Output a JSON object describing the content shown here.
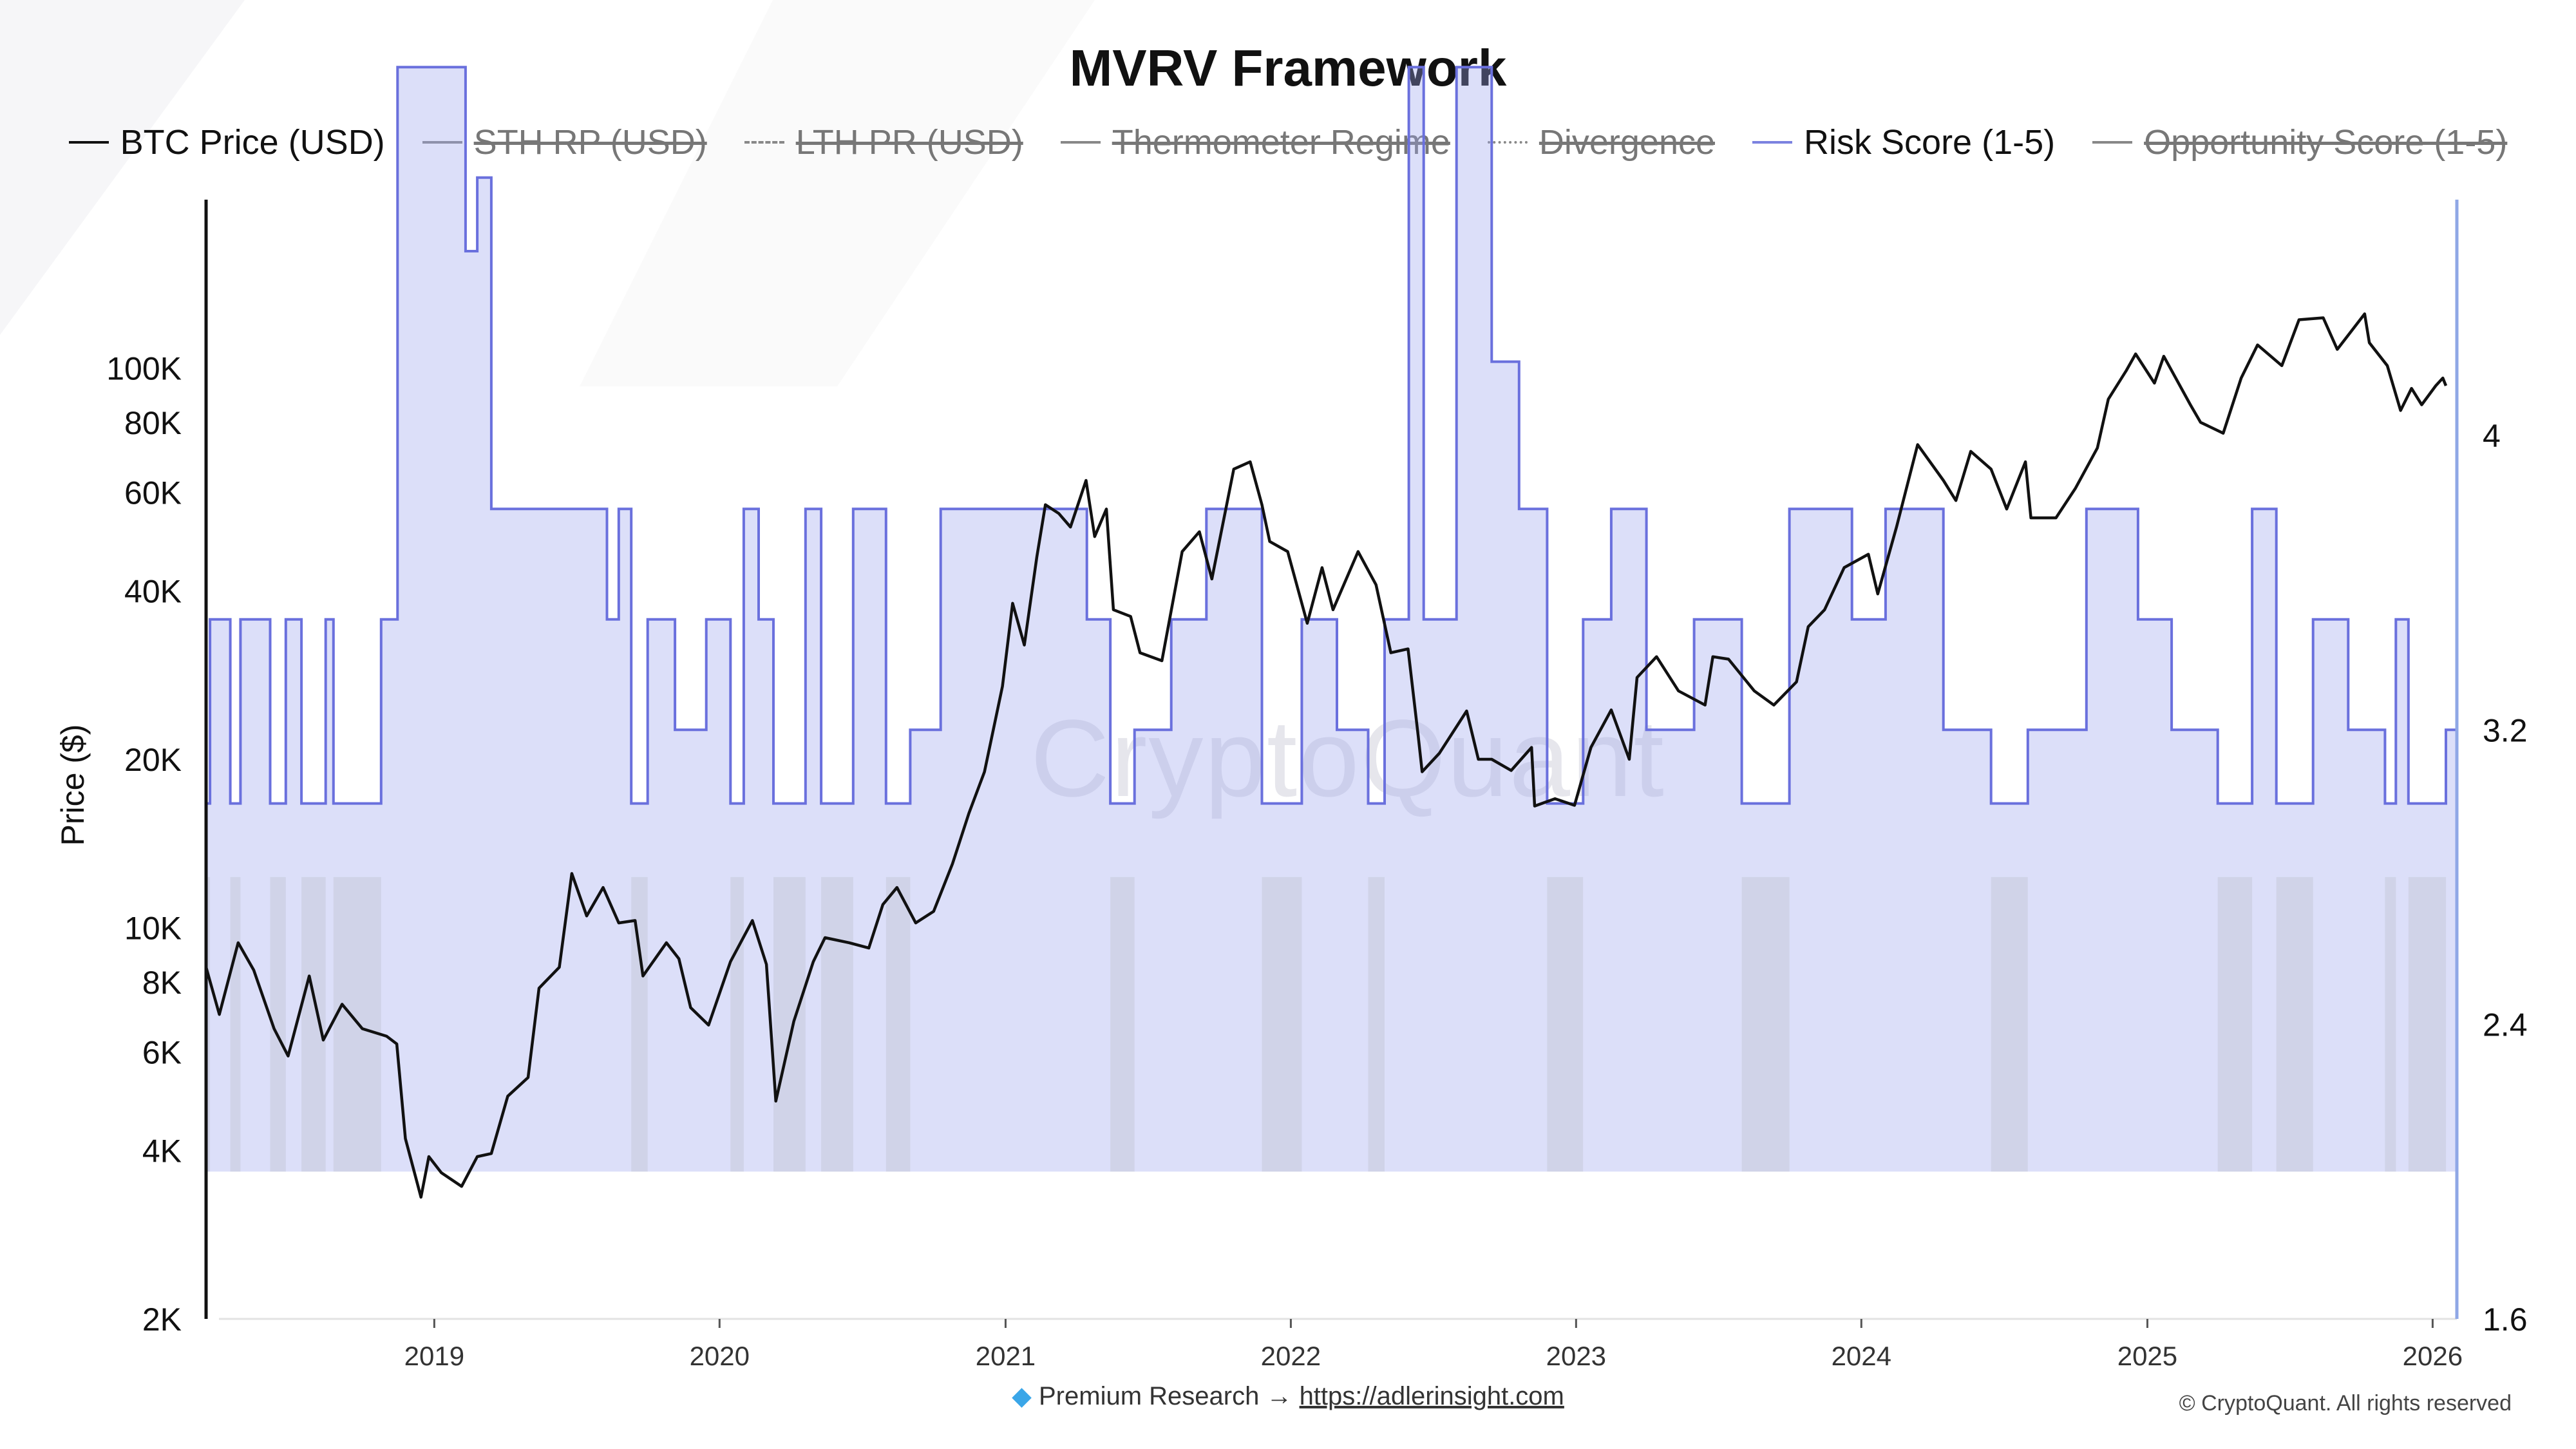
{
  "chart_data": {
    "type": "line",
    "title": "MVRV Framework",
    "ylabel": "Price ($)",
    "y_scale": "log",
    "ylim": [
      2000,
      200000
    ],
    "y_ticks": [
      2000,
      4000,
      6000,
      8000,
      10000,
      20000,
      40000,
      60000,
      80000,
      100000
    ],
    "y_tick_labels": [
      "2K",
      "4K",
      "6K",
      "8K",
      "10K",
      "20K",
      "40K",
      "60K",
      "80K",
      "100K"
    ],
    "y2lim": [
      1.6,
      4.64
    ],
    "y2_ticks": [
      1.6,
      2.4,
      3.2,
      4
    ],
    "y2_tick_labels": [
      "1.6",
      "2.4",
      "3.2",
      "4"
    ],
    "xlim": [
      "2018-03-15",
      "2026-02-01"
    ],
    "x_ticks": [
      "2019-01-01",
      "2020-01-01",
      "2021-01-01",
      "2022-01-01",
      "2023-01-01",
      "2024-01-01",
      "2025-01-01",
      "2026-01-01"
    ],
    "x_tick_labels": [
      "2019",
      "2020",
      "2021",
      "2022",
      "2023",
      "2024",
      "2025",
      "2026"
    ],
    "grid": false,
    "legend_position": "top",
    "legend": [
      {
        "name": "BTC Price (USD)",
        "color": "#111111",
        "style": "solid",
        "visible": true
      },
      {
        "name": "STH RP (USD)",
        "color": "#888888",
        "style": "solid",
        "visible": false
      },
      {
        "name": "LTH PR (USD)",
        "color": "#888888",
        "style": "dashed",
        "visible": false
      },
      {
        "name": "Thermometer Regime",
        "color": "#888888",
        "style": "solid",
        "visible": false
      },
      {
        "name": "Divergence",
        "color": "#888888",
        "style": "dotted",
        "visible": false
      },
      {
        "name": "Risk Score (1-5)",
        "color": "#7b82e0",
        "style": "solid",
        "visible": true
      },
      {
        "name": "Opportunity Score (1-5)",
        "color": "#888888",
        "style": "solid",
        "visible": false
      }
    ],
    "series": [
      {
        "name": "BTC Price (USD)",
        "axis": "left",
        "color": "#111111",
        "points": [
          [
            "2018-03-15",
            8500
          ],
          [
            "2018-04-01",
            7000
          ],
          [
            "2018-04-25",
            9400
          ],
          [
            "2018-05-15",
            8400
          ],
          [
            "2018-06-10",
            6600
          ],
          [
            "2018-06-28",
            5900
          ],
          [
            "2018-07-25",
            8200
          ],
          [
            "2018-08-12",
            6300
          ],
          [
            "2018-09-05",
            7300
          ],
          [
            "2018-10-01",
            6600
          ],
          [
            "2018-11-01",
            6400
          ],
          [
            "2018-11-14",
            6200
          ],
          [
            "2018-11-25",
            4200
          ],
          [
            "2018-12-15",
            3300
          ],
          [
            "2018-12-25",
            3900
          ],
          [
            "2019-01-10",
            3650
          ],
          [
            "2019-02-05",
            3450
          ],
          [
            "2019-02-25",
            3900
          ],
          [
            "2019-03-15",
            3950
          ],
          [
            "2019-04-05",
            5000
          ],
          [
            "2019-05-01",
            5400
          ],
          [
            "2019-05-15",
            7800
          ],
          [
            "2019-06-10",
            8500
          ],
          [
            "2019-06-26",
            12500
          ],
          [
            "2019-07-15",
            10500
          ],
          [
            "2019-08-05",
            11800
          ],
          [
            "2019-08-25",
            10200
          ],
          [
            "2019-09-15",
            10300
          ],
          [
            "2019-09-25",
            8200
          ],
          [
            "2019-10-25",
            9400
          ],
          [
            "2019-11-10",
            8800
          ],
          [
            "2019-11-25",
            7200
          ],
          [
            "2019-12-18",
            6700
          ],
          [
            "2020-01-15",
            8700
          ],
          [
            "2020-02-12",
            10300
          ],
          [
            "2020-03-01",
            8600
          ],
          [
            "2020-03-13",
            4900
          ],
          [
            "2020-04-05",
            6800
          ],
          [
            "2020-04-30",
            8700
          ],
          [
            "2020-05-15",
            9600
          ],
          [
            "2020-06-15",
            9400
          ],
          [
            "2020-07-10",
            9200
          ],
          [
            "2020-07-28",
            11000
          ],
          [
            "2020-08-15",
            11800
          ],
          [
            "2020-09-08",
            10200
          ],
          [
            "2020-10-01",
            10700
          ],
          [
            "2020-10-25",
            13000
          ],
          [
            "2020-11-15",
            16000
          ],
          [
            "2020-12-05",
            19000
          ],
          [
            "2020-12-28",
            27000
          ],
          [
            "2021-01-10",
            38000
          ],
          [
            "2021-01-25",
            32000
          ],
          [
            "2021-02-10",
            46000
          ],
          [
            "2021-02-21",
            57000
          ],
          [
            "2021-03-10",
            55000
          ],
          [
            "2021-03-25",
            52000
          ],
          [
            "2021-04-14",
            63000
          ],
          [
            "2021-04-25",
            50000
          ],
          [
            "2021-05-10",
            56000
          ],
          [
            "2021-05-19",
            37000
          ],
          [
            "2021-06-10",
            36000
          ],
          [
            "2021-06-22",
            31000
          ],
          [
            "2021-07-20",
            30000
          ],
          [
            "2021-08-15",
            47000
          ],
          [
            "2021-09-06",
            51000
          ],
          [
            "2021-09-22",
            42000
          ],
          [
            "2021-10-20",
            66000
          ],
          [
            "2021-11-10",
            68000
          ],
          [
            "2021-11-25",
            57000
          ],
          [
            "2021-12-05",
            49000
          ],
          [
            "2021-12-28",
            47000
          ],
          [
            "2022-01-22",
            35000
          ],
          [
            "2022-02-10",
            44000
          ],
          [
            "2022-02-24",
            37000
          ],
          [
            "2022-03-28",
            47000
          ],
          [
            "2022-04-20",
            41000
          ],
          [
            "2022-05-09",
            31000
          ],
          [
            "2022-05-31",
            31500
          ],
          [
            "2022-06-13",
            22000
          ],
          [
            "2022-06-18",
            19000
          ],
          [
            "2022-07-10",
            20500
          ],
          [
            "2022-08-14",
            24400
          ],
          [
            "2022-08-29",
            20000
          ],
          [
            "2022-09-15",
            20000
          ],
          [
            "2022-10-10",
            19100
          ],
          [
            "2022-11-05",
            21000
          ],
          [
            "2022-11-09",
            16500
          ],
          [
            "2022-12-05",
            17000
          ],
          [
            "2022-12-30",
            16550
          ],
          [
            "2023-01-20",
            21000
          ],
          [
            "2023-02-15",
            24500
          ],
          [
            "2023-03-10",
            20000
          ],
          [
            "2023-03-20",
            28000
          ],
          [
            "2023-04-14",
            30500
          ],
          [
            "2023-05-12",
            26500
          ],
          [
            "2023-06-15",
            25000
          ],
          [
            "2023-06-25",
            30500
          ],
          [
            "2023-07-15",
            30200
          ],
          [
            "2023-08-17",
            26500
          ],
          [
            "2023-09-11",
            25000
          ],
          [
            "2023-10-10",
            27500
          ],
          [
            "2023-10-25",
            34500
          ],
          [
            "2023-11-15",
            37000
          ],
          [
            "2023-12-10",
            44000
          ],
          [
            "2024-01-10",
            46500
          ],
          [
            "2024-01-22",
            39500
          ],
          [
            "2024-02-15",
            52000
          ],
          [
            "2024-03-13",
            73000
          ],
          [
            "2024-04-15",
            63000
          ],
          [
            "2024-05-01",
            58000
          ],
          [
            "2024-05-20",
            71000
          ],
          [
            "2024-06-15",
            66000
          ],
          [
            "2024-07-05",
            56000
          ],
          [
            "2024-07-29",
            68000
          ],
          [
            "2024-08-05",
            54000
          ],
          [
            "2024-09-06",
            54000
          ],
          [
            "2024-10-01",
            61000
          ],
          [
            "2024-10-29",
            72000
          ],
          [
            "2024-11-12",
            88000
          ],
          [
            "2024-12-05",
            99000
          ],
          [
            "2024-12-17",
            106000
          ],
          [
            "2025-01-10",
            94000
          ],
          [
            "2025-01-22",
            105000
          ],
          [
            "2025-02-25",
            86000
          ],
          [
            "2025-03-10",
            80000
          ],
          [
            "2025-04-08",
            76500
          ],
          [
            "2025-05-01",
            96000
          ],
          [
            "2025-05-22",
            110000
          ],
          [
            "2025-06-22",
            101000
          ],
          [
            "2025-07-14",
            122000
          ],
          [
            "2025-08-14",
            123000
          ],
          [
            "2025-09-01",
            108000
          ],
          [
            "2025-10-06",
            125000
          ],
          [
            "2025-10-12",
            111000
          ],
          [
            "2025-11-04",
            101000
          ],
          [
            "2025-11-21",
            84000
          ],
          [
            "2025-12-05",
            92000
          ],
          [
            "2025-12-18",
            86000
          ],
          [
            "2026-01-05",
            93000
          ],
          [
            "2026-01-14",
            96000
          ],
          [
            "2026-01-18",
            93000
          ]
        ]
      },
      {
        "name": "Risk Score (1-5)",
        "axis": "right",
        "color": "#7b82e0",
        "steps": [
          [
            "2018-03-15",
            3.0
          ],
          [
            "2018-03-20",
            3.5
          ],
          [
            "2018-04-15",
            3.0
          ],
          [
            "2018-04-28",
            3.5
          ],
          [
            "2018-06-05",
            3.0
          ],
          [
            "2018-06-25",
            3.5
          ],
          [
            "2018-07-15",
            3.0
          ],
          [
            "2018-08-15",
            3.5
          ],
          [
            "2018-08-25",
            3.0
          ],
          [
            "2018-10-25",
            3.5
          ],
          [
            "2018-11-15",
            5.0
          ],
          [
            "2019-02-10",
            4.5
          ],
          [
            "2019-02-25",
            4.7
          ],
          [
            "2019-03-15",
            3.8
          ],
          [
            "2019-08-10",
            3.5
          ],
          [
            "2019-08-25",
            3.8
          ],
          [
            "2019-09-10",
            3.0
          ],
          [
            "2019-10-01",
            3.5
          ],
          [
            "2019-11-05",
            3.2
          ],
          [
            "2019-12-15",
            3.5
          ],
          [
            "2020-01-15",
            3.0
          ],
          [
            "2020-02-01",
            3.8
          ],
          [
            "2020-02-20",
            3.5
          ],
          [
            "2020-03-10",
            3.0
          ],
          [
            "2020-04-20",
            3.8
          ],
          [
            "2020-05-10",
            3.0
          ],
          [
            "2020-06-20",
            3.8
          ],
          [
            "2020-08-01",
            3.0
          ],
          [
            "2020-09-01",
            3.2
          ],
          [
            "2020-10-10",
            3.8
          ],
          [
            "2021-02-15",
            3.8
          ],
          [
            "2021-04-15",
            3.5
          ],
          [
            "2021-05-15",
            3.0
          ],
          [
            "2021-06-15",
            3.2
          ],
          [
            "2021-08-01",
            3.5
          ],
          [
            "2021-09-15",
            3.8
          ],
          [
            "2021-11-25",
            3.0
          ],
          [
            "2022-01-15",
            3.5
          ],
          [
            "2022-03-01",
            3.2
          ],
          [
            "2022-04-10",
            3.0
          ],
          [
            "2022-05-01",
            3.5
          ],
          [
            "2022-06-01",
            5.0
          ],
          [
            "2022-06-20",
            3.5
          ],
          [
            "2022-08-01",
            5.0
          ],
          [
            "2022-09-15",
            4.2
          ],
          [
            "2022-10-20",
            3.8
          ],
          [
            "2022-11-25",
            3.0
          ],
          [
            "2023-01-10",
            3.5
          ],
          [
            "2023-02-15",
            3.8
          ],
          [
            "2023-04-01",
            3.2
          ],
          [
            "2023-06-01",
            3.5
          ],
          [
            "2023-08-01",
            3.0
          ],
          [
            "2023-10-01",
            3.8
          ],
          [
            "2023-12-20",
            3.5
          ],
          [
            "2024-02-01",
            3.8
          ],
          [
            "2024-04-15",
            3.2
          ],
          [
            "2024-06-15",
            3.0
          ],
          [
            "2024-08-01",
            3.2
          ],
          [
            "2024-10-15",
            3.8
          ],
          [
            "2024-12-20",
            3.5
          ],
          [
            "2025-02-01",
            3.2
          ],
          [
            "2025-04-01",
            3.0
          ],
          [
            "2025-05-15",
            3.8
          ],
          [
            "2025-06-15",
            3.0
          ],
          [
            "2025-08-01",
            3.5
          ],
          [
            "2025-09-15",
            3.2
          ],
          [
            "2025-11-01",
            3.0
          ],
          [
            "2025-11-15",
            3.5
          ],
          [
            "2025-12-01",
            3.0
          ],
          [
            "2026-01-18",
            3.2
          ]
        ]
      }
    ]
  },
  "footer": {
    "premium_text": "Premium Research →",
    "link_text": "https://adlerinsight.com",
    "copyright": "© CryptoQuant. All rights reserved",
    "watermark": "CryptoQuant"
  },
  "colors": {
    "price_line": "#111111",
    "risk_line": "#6a70dd",
    "risk_fill": "#9aa4ee",
    "opportunity_fill": "#b9bcc8",
    "right_axis": "#8fa7e6"
  }
}
